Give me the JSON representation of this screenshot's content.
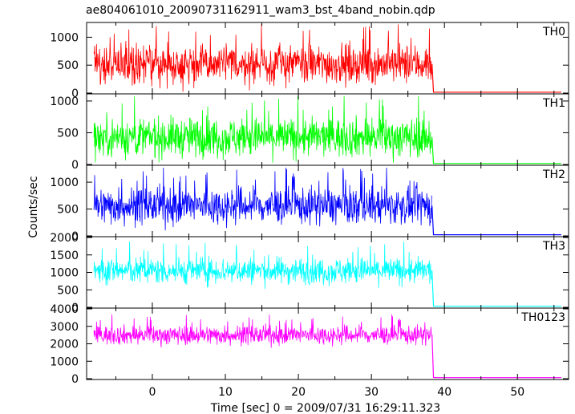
{
  "chart_data": {
    "type": "line",
    "title": "ae804061010_20090731162911_wam3_bst_4band_nobin.qdp",
    "xlabel": "Time [sec] 0 = 2009/07/31 16:29:11.323",
    "ylabel": "Counts/sec",
    "xlim": [
      -9,
      57
    ],
    "x_ticks": [
      0,
      10,
      20,
      30,
      40,
      50
    ],
    "grid": false,
    "series": [
      {
        "name": "TH0",
        "color": "#ff0000",
        "ylim": [
          0,
          1250
        ],
        "y_ticks": [
          0,
          500,
          1000
        ],
        "x_active": [
          -8,
          38.3
        ],
        "mean_active": 520,
        "amplitude_active": 380,
        "max_active": 1230,
        "baseline_after": 15,
        "x_end": 56
      },
      {
        "name": "TH1",
        "color": "#00ff00",
        "ylim": [
          0,
          1100
        ],
        "y_ticks": [
          0,
          500,
          1000
        ],
        "x_active": [
          -8,
          38.3
        ],
        "mean_active": 430,
        "amplitude_active": 340,
        "max_active": 1080,
        "baseline_after": 15,
        "x_end": 56
      },
      {
        "name": "TH2",
        "color": "#0000ff",
        "ylim": [
          0,
          1300
        ],
        "y_ticks": [
          0,
          500,
          1000
        ],
        "x_active": [
          -8,
          38.3
        ],
        "mean_active": 560,
        "amplitude_active": 380,
        "max_active": 1270,
        "baseline_after": 20,
        "x_end": 56
      },
      {
        "name": "TH3",
        "color": "#00ffff",
        "ylim": [
          0,
          2000
        ],
        "y_ticks": [
          0,
          500,
          1000,
          1500,
          2000
        ],
        "x_active": [
          -8,
          38.3
        ],
        "mean_active": 1050,
        "amplitude_active": 420,
        "max_active": 1950,
        "baseline_after": 30,
        "x_end": 56
      },
      {
        "name": "TH0123",
        "color": "#ff00ff",
        "ylim": [
          0,
          4000
        ],
        "y_ticks": [
          0,
          1000,
          2000,
          3000,
          4000
        ],
        "x_active": [
          -8,
          38.3
        ],
        "mean_active": 2500,
        "amplitude_active": 600,
        "max_active": 3900,
        "baseline_after": 60,
        "x_end": 56
      }
    ]
  }
}
